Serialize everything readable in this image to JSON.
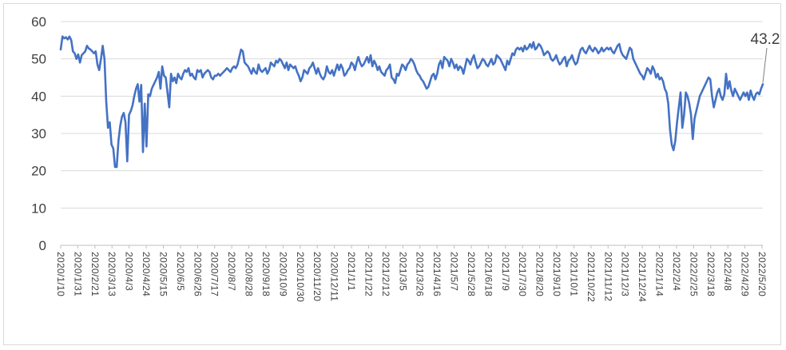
{
  "chart_data": {
    "type": "line",
    "title": "",
    "xlabel": "",
    "ylabel": "",
    "ylim": [
      0,
      60
    ],
    "yticks": [
      0,
      10,
      20,
      30,
      40,
      50,
      60
    ],
    "grid": "horizontal",
    "legend": "none",
    "x_tick_labels": [
      "2020/1/10",
      "2020/1/31",
      "2020/2/21",
      "2020/3/13",
      "2020/4/3",
      "2020/4/24",
      "2020/5/15",
      "2020/6/5",
      "2020/6/26",
      "2020/7/17",
      "2020/8/7",
      "2020/8/28",
      "2020/9/18",
      "2020/10/9",
      "2020/10/30",
      "2020/11/20",
      "2020/12/11",
      "2021/1/1",
      "2021/1/22",
      "2021/2/12",
      "2021/3/5",
      "2021/3/26",
      "2021/4/16",
      "2021/5/7",
      "2021/5/28",
      "2021/6/18",
      "2021/7/9",
      "2021/7/30",
      "2021/8/20",
      "2021/9/10",
      "2021/10/1",
      "2021/10/22",
      "2021/11/12",
      "2021/12/3",
      "2021/12/24",
      "2022/1/14",
      "2022/2/4",
      "2022/2/25",
      "2022/3/18",
      "2022/4/8",
      "2022/4/29",
      "2022/5/20"
    ],
    "series": [
      {
        "name": "",
        "color": "#4472c4",
        "values": [
          52.5,
          56,
          55.5,
          55.8,
          55.2,
          56,
          55,
          52,
          51.5,
          50,
          51.2,
          49,
          51,
          51.5,
          52,
          53.5,
          52.8,
          52.5,
          52,
          51.5,
          52,
          48.5,
          47,
          50,
          53.5,
          50,
          38.5,
          31.5,
          33,
          27,
          26,
          21,
          21,
          28,
          32,
          34.5,
          35.5,
          33,
          22.5,
          35,
          36,
          37.5,
          40,
          42,
          43.2,
          38.5,
          43,
          25,
          38,
          26.5,
          40.5,
          40,
          42,
          43,
          44,
          45,
          46.5,
          42,
          48,
          45.5,
          45,
          41,
          37,
          46,
          44,
          45,
          43.5,
          46,
          45,
          44.5,
          46,
          47,
          46.5,
          47.5,
          45.5,
          46,
          45,
          44.5,
          47,
          46.5,
          47,
          45,
          46,
          46.5,
          47,
          46.5,
          45,
          44.5,
          45.5,
          45.5,
          46,
          45.5,
          46,
          46.5,
          47,
          47.5,
          47,
          46.5,
          47.5,
          48,
          47.5,
          48.5,
          50.5,
          52.5,
          52,
          49,
          48.5,
          48,
          47,
          46,
          47.5,
          46.5,
          46,
          48.5,
          47,
          46.5,
          47,
          47.5,
          46,
          47,
          49,
          48.5,
          48,
          49.5,
          49,
          50,
          49.5,
          48.5,
          47.5,
          49,
          47,
          48.5,
          48,
          47.5,
          48,
          46.5,
          45.5,
          44,
          45,
          47,
          46.5,
          46,
          47.5,
          48,
          49,
          47.5,
          46,
          47.5,
          46,
          45,
          44.5,
          45.5,
          48,
          46.5,
          46,
          47,
          45.5,
          47,
          48.5,
          47,
          48.5,
          47.5,
          45.5,
          46,
          47,
          47.5,
          49,
          48.5,
          47,
          49,
          50.5,
          49,
          48,
          48.5,
          49.5,
          50.5,
          49,
          51,
          48,
          49.5,
          48.5,
          47,
          48,
          46.5,
          46,
          45.5,
          47,
          47.5,
          48.5,
          45,
          44.5,
          43.5,
          46,
          45.5,
          47,
          48.5,
          48,
          47,
          48.5,
          49,
          50,
          49.5,
          48.5,
          47,
          46,
          45.5,
          44.5,
          44,
          43,
          42,
          42.5,
          44,
          45.5,
          46,
          44.5,
          46,
          48.5,
          49.5,
          47.5,
          50.5,
          50,
          49.5,
          48,
          50,
          49,
          47.5,
          48.5,
          47,
          48,
          47.5,
          46,
          48,
          50,
          49.5,
          48.5,
          50,
          51,
          49,
          47.5,
          48,
          49,
          50,
          49.5,
          48.5,
          48,
          49,
          50,
          48.5,
          49,
          51,
          50.5,
          50,
          49,
          48,
          47,
          49.5,
          48.5,
          50,
          51.5,
          51,
          52.5,
          53,
          52.5,
          53,
          52,
          53.5,
          52.5,
          53,
          54,
          53,
          54.5,
          52.5,
          53,
          54,
          53.5,
          52.5,
          51,
          51.5,
          52,
          51.5,
          50,
          49.5,
          50,
          51,
          49.5,
          48.5,
          49,
          50,
          50.5,
          48,
          49.5,
          50,
          51,
          49.5,
          48.5,
          49,
          51,
          52.5,
          53,
          52,
          51.5,
          52.5,
          53.5,
          52.5,
          52,
          53,
          52.5,
          51.5,
          52,
          53,
          52,
          52.5,
          53,
          52.5,
          53,
          52,
          51.5,
          52.5,
          53.5,
          54,
          52,
          51,
          50.5,
          50,
          51.5,
          53,
          52.5,
          50,
          49,
          48,
          47,
          46,
          45.5,
          44.5,
          46,
          47.5,
          47,
          46,
          48,
          47,
          45,
          46,
          44.5,
          45,
          44,
          42,
          41,
          38,
          31,
          27,
          25.5,
          28,
          33,
          37,
          41,
          31.5,
          35,
          41,
          40,
          38,
          35,
          28.5,
          34,
          36,
          38,
          40,
          41,
          42,
          43,
          44,
          45,
          44.5,
          40,
          37,
          39,
          41,
          42,
          40,
          39,
          40.5,
          46,
          42,
          44,
          41.5,
          40,
          42,
          41,
          40,
          39,
          40,
          41,
          40,
          41,
          39,
          41.5,
          40,
          39,
          40.5,
          41,
          40.5,
          42,
          43.2
        ]
      }
    ],
    "annotations": [
      {
        "text": "43.2",
        "target": "last-point"
      }
    ]
  }
}
